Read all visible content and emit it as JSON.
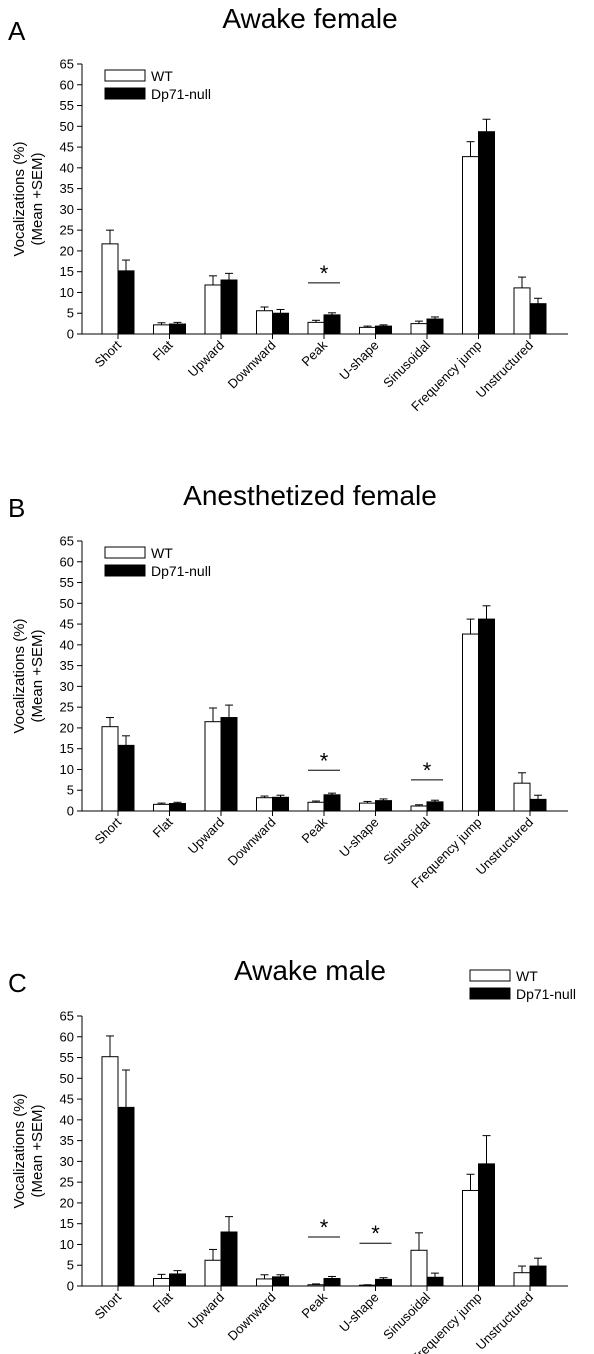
{
  "chart_data": [
    {
      "type": "bar",
      "panel": "A",
      "title": "Awake female",
      "ylabel": [
        "Vocalizations (%)",
        "(Mean +SEM)"
      ],
      "categories": [
        "Short",
        "Flat",
        "Upward",
        "Downward",
        "Peak",
        "U-shape",
        "Sinusoidal",
        "Frequency jump",
        "Unstructured"
      ],
      "series": [
        {
          "name": "WT",
          "color": "#ffffff",
          "values": [
            21.7,
            2.2,
            11.8,
            5.6,
            2.8,
            1.6,
            2.5,
            42.7,
            11.1
          ],
          "errors": [
            3.3,
            0.5,
            2.2,
            0.9,
            0.5,
            0.3,
            0.6,
            3.6,
            2.6
          ]
        },
        {
          "name": "Dp71-null",
          "color": "#000000",
          "values": [
            15.2,
            2.4,
            13.0,
            5.0,
            4.6,
            1.9,
            3.6,
            48.7,
            7.3
          ],
          "errors": [
            2.6,
            0.4,
            1.6,
            0.9,
            0.5,
            0.3,
            0.5,
            3.0,
            1.3
          ]
        }
      ],
      "ylim": [
        0,
        65
      ],
      "yticks": [
        0,
        5,
        10,
        15,
        20,
        25,
        30,
        35,
        40,
        45,
        50,
        55,
        60,
        65
      ],
      "legend": "upper left",
      "annotations": [
        {
          "text": "*",
          "x": "Peak",
          "y": 12.3
        }
      ]
    },
    {
      "type": "bar",
      "panel": "B",
      "title": "Anesthetized female",
      "ylabel": [
        "Vocalizations (%)",
        "(Mean +SEM)"
      ],
      "categories": [
        "Short",
        "Flat",
        "Upward",
        "Downward",
        "Peak",
        "U-shape",
        "Sinusoidal",
        "Frequency jump",
        "Unstructured"
      ],
      "series": [
        {
          "name": "WT",
          "color": "#ffffff",
          "values": [
            20.3,
            1.6,
            21.5,
            3.2,
            2.1,
            1.9,
            1.2,
            42.6,
            6.7
          ],
          "errors": [
            2.2,
            0.3,
            3.3,
            0.4,
            0.3,
            0.4,
            0.3,
            3.6,
            2.5
          ]
        },
        {
          "name": "Dp71-null",
          "color": "#000000",
          "values": [
            15.8,
            1.8,
            22.5,
            3.3,
            3.9,
            2.5,
            2.2,
            46.2,
            2.8
          ],
          "errors": [
            2.3,
            0.3,
            3.0,
            0.5,
            0.4,
            0.4,
            0.4,
            3.2,
            1.0
          ]
        }
      ],
      "ylim": [
        0,
        65
      ],
      "yticks": [
        0,
        5,
        10,
        15,
        20,
        25,
        30,
        35,
        40,
        45,
        50,
        55,
        60,
        65
      ],
      "legend": "upper left",
      "annotations": [
        {
          "text": "*",
          "x": "Peak",
          "y": 9.8
        },
        {
          "text": "*",
          "x": "Sinusoidal",
          "y": 7.5
        }
      ]
    },
    {
      "type": "bar",
      "panel": "C",
      "title": "Awake male",
      "ylabel": [
        "Vocalizations (%)",
        "(Mean +SEM)"
      ],
      "categories": [
        "Short",
        "Flat",
        "Upward",
        "Downward",
        "Peak",
        "U-shape",
        "Sinusoidal",
        "Frequency jump",
        "Unstructured"
      ],
      "series": [
        {
          "name": "WT",
          "color": "#ffffff",
          "values": [
            55.2,
            1.8,
            6.2,
            1.7,
            0.3,
            0.2,
            8.6,
            23.0,
            3.2
          ],
          "errors": [
            5.0,
            1.0,
            2.6,
            1.0,
            0.2,
            0.1,
            4.2,
            3.9,
            1.6
          ]
        },
        {
          "name": "Dp71-null",
          "color": "#000000",
          "values": [
            43.0,
            2.9,
            13.0,
            2.2,
            1.8,
            1.6,
            2.1,
            29.4,
            4.8
          ],
          "errors": [
            9.0,
            0.8,
            3.7,
            0.5,
            0.5,
            0.4,
            1.0,
            6.8,
            1.9
          ]
        }
      ],
      "ylim": [
        0,
        65
      ],
      "yticks": [
        0,
        5,
        10,
        15,
        20,
        25,
        30,
        35,
        40,
        45,
        50,
        55,
        60,
        65
      ],
      "legend": "upper right",
      "annotations": [
        {
          "text": "*",
          "x": "Peak",
          "y": 11.8
        },
        {
          "text": "*",
          "x": "U-shape",
          "y": 10.3
        }
      ]
    }
  ]
}
